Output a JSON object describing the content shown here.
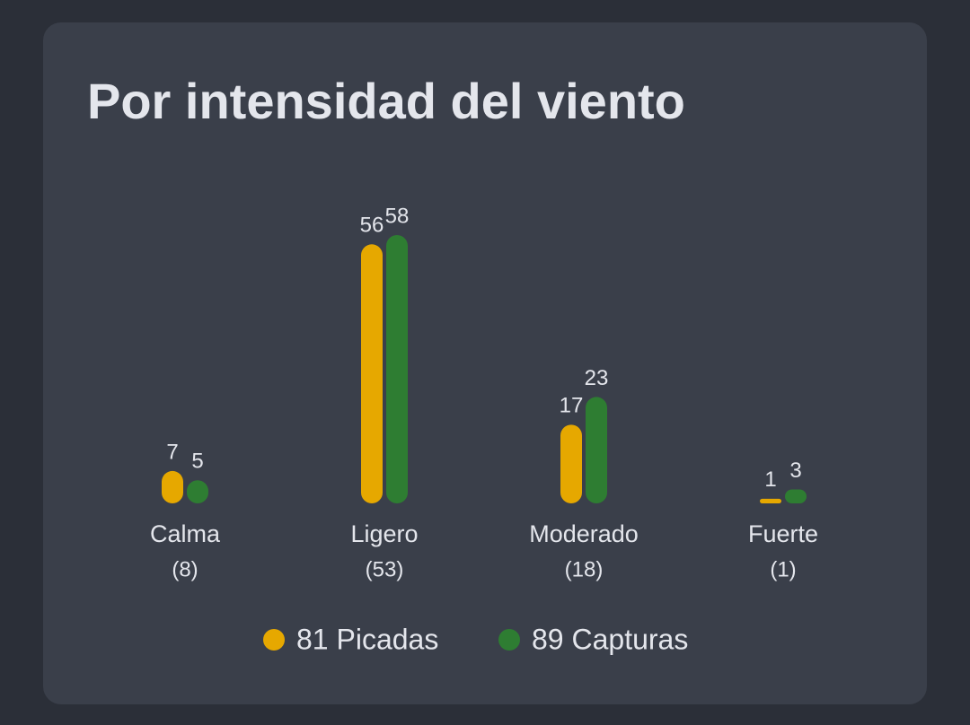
{
  "chart_data": {
    "type": "bar",
    "title": "Por intensidad del viento",
    "categories": [
      "Calma",
      "Ligero",
      "Moderado",
      "Fuerte"
    ],
    "category_notes": [
      "(8)",
      "(53)",
      "(18)",
      "(1)"
    ],
    "series": [
      {
        "name": "81 Picadas",
        "color": "#e6a800",
        "values": [
          7,
          56,
          17,
          1
        ]
      },
      {
        "name": "89 Capturas",
        "color": "#2e7d32",
        "values": [
          5,
          58,
          23,
          3
        ]
      }
    ]
  }
}
